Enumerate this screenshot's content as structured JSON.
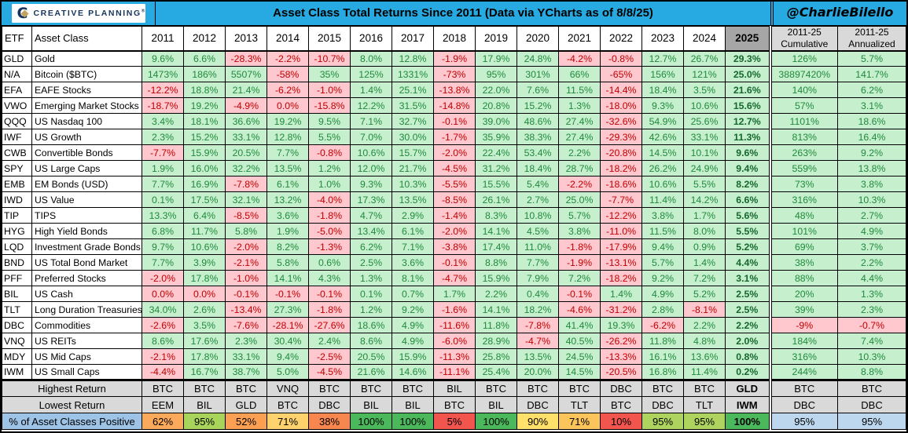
{
  "header": {
    "logo_text": "CREATIVE PLANNING",
    "logo_mark": "®",
    "logo_icon": "C",
    "title": "Asset Class Total Returns Since 2011 (Data via YCharts as of 8/8/25)",
    "handle": "@CharlieBilello",
    "accent_color": "#27AAE1"
  },
  "chart_data": {
    "type": "table",
    "title": "Asset Class Total Returns Since 2011 (Data via YCharts as of 8/8/25)",
    "columns": {
      "etf": "ETF",
      "asset_class": "Asset Class",
      "years": [
        "2011",
        "2012",
        "2013",
        "2014",
        "2015",
        "2016",
        "2017",
        "2018",
        "2019",
        "2020",
        "2021",
        "2022",
        "2023",
        "2024"
      ],
      "year_2025": "2025",
      "cumulative": [
        "2011-25",
        "Cumulative"
      ],
      "annualized": [
        "2011-25",
        "Annualized"
      ]
    },
    "rows": [
      {
        "etf": "GLD",
        "asset_class": "Gold",
        "returns": [
          "9.6%",
          "6.6%",
          "-28.3%",
          "-2.2%",
          "-10.7%",
          "8.0%",
          "12.8%",
          "-1.9%",
          "17.9%",
          "24.8%",
          "-4.2%",
          "-0.8%",
          "12.7%",
          "26.7%"
        ],
        "r2025": "29.3%",
        "cumulative": "126%",
        "annualized": "5.7%"
      },
      {
        "etf": "N/A",
        "asset_class": "Bitcoin ($BTC)",
        "returns": [
          "1473%",
          "186%",
          "5507%",
          "-58%",
          "35%",
          "125%",
          "1331%",
          "-73%",
          "95%",
          "301%",
          "66%",
          "-65%",
          "156%",
          "121%"
        ],
        "r2025": "25.0%",
        "cumulative": "38897420%",
        "annualized": "141.7%"
      },
      {
        "etf": "EFA",
        "asset_class": "EAFE Stocks",
        "returns": [
          "-12.2%",
          "18.8%",
          "21.4%",
          "-6.2%",
          "-1.0%",
          "1.4%",
          "25.1%",
          "-13.8%",
          "22.0%",
          "7.6%",
          "11.5%",
          "-14.4%",
          "18.4%",
          "3.5%"
        ],
        "r2025": "21.6%",
        "cumulative": "140%",
        "annualized": "6.2%"
      },
      {
        "etf": "VWO",
        "asset_class": "Emerging Market Stocks",
        "returns": [
          "-18.7%",
          "19.2%",
          "-4.9%",
          "0.0%",
          "-15.8%",
          "12.2%",
          "31.5%",
          "-14.8%",
          "20.8%",
          "15.2%",
          "1.3%",
          "-18.0%",
          "9.3%",
          "10.6%"
        ],
        "r2025": "15.6%",
        "cumulative": "57%",
        "annualized": "3.1%"
      },
      {
        "etf": "QQQ",
        "asset_class": "US Nasdaq 100",
        "returns": [
          "3.4%",
          "18.1%",
          "36.6%",
          "19.2%",
          "9.5%",
          "7.1%",
          "32.7%",
          "-0.1%",
          "39.0%",
          "48.6%",
          "27.4%",
          "-32.6%",
          "54.9%",
          "25.6%"
        ],
        "r2025": "12.7%",
        "cumulative": "1101%",
        "annualized": "18.6%"
      },
      {
        "etf": "IWF",
        "asset_class": "US Growth",
        "returns": [
          "2.3%",
          "15.2%",
          "33.1%",
          "12.8%",
          "5.5%",
          "7.0%",
          "30.0%",
          "-1.7%",
          "35.9%",
          "38.3%",
          "27.4%",
          "-29.3%",
          "42.6%",
          "33.1%"
        ],
        "r2025": "11.3%",
        "cumulative": "813%",
        "annualized": "16.4%"
      },
      {
        "etf": "CWB",
        "asset_class": "Convertible Bonds",
        "returns": [
          "-7.7%",
          "15.9%",
          "20.5%",
          "7.7%",
          "-0.8%",
          "10.6%",
          "15.7%",
          "-2.0%",
          "22.4%",
          "53.4%",
          "2.2%",
          "-20.8%",
          "14.5%",
          "10.1%"
        ],
        "r2025": "9.6%",
        "cumulative": "263%",
        "annualized": "9.2%"
      },
      {
        "etf": "SPY",
        "asset_class": "US Large Caps",
        "returns": [
          "1.9%",
          "16.0%",
          "32.2%",
          "13.5%",
          "1.2%",
          "12.0%",
          "21.7%",
          "-4.5%",
          "31.2%",
          "18.4%",
          "28.7%",
          "-18.2%",
          "26.2%",
          "24.9%"
        ],
        "r2025": "9.4%",
        "cumulative": "559%",
        "annualized": "13.8%"
      },
      {
        "etf": "EMB",
        "asset_class": "EM Bonds (USD)",
        "returns": [
          "7.7%",
          "16.9%",
          "-7.8%",
          "6.1%",
          "1.0%",
          "9.3%",
          "10.3%",
          "-5.5%",
          "15.5%",
          "5.4%",
          "-2.2%",
          "-18.6%",
          "10.6%",
          "5.5%"
        ],
        "r2025": "8.2%",
        "cumulative": "73%",
        "annualized": "3.8%"
      },
      {
        "etf": "IWD",
        "asset_class": "US Value",
        "returns": [
          "0.1%",
          "17.5%",
          "32.1%",
          "13.2%",
          "-4.0%",
          "17.3%",
          "13.5%",
          "-8.5%",
          "26.1%",
          "2.7%",
          "25.0%",
          "-7.7%",
          "11.4%",
          "14.2%"
        ],
        "r2025": "6.6%",
        "cumulative": "316%",
        "annualized": "10.3%"
      },
      {
        "etf": "TIP",
        "asset_class": "TIPS",
        "returns": [
          "13.3%",
          "6.4%",
          "-8.5%",
          "3.6%",
          "-1.8%",
          "4.7%",
          "2.9%",
          "-1.4%",
          "8.3%",
          "10.8%",
          "5.7%",
          "-12.2%",
          "3.8%",
          "1.7%"
        ],
        "r2025": "5.6%",
        "cumulative": "48%",
        "annualized": "2.7%"
      },
      {
        "etf": "HYG",
        "asset_class": "High Yield Bonds",
        "returns": [
          "6.8%",
          "11.7%",
          "5.8%",
          "1.9%",
          "-5.0%",
          "13.4%",
          "6.1%",
          "-2.0%",
          "14.1%",
          "4.5%",
          "3.8%",
          "-11.0%",
          "11.5%",
          "8.0%"
        ],
        "r2025": "5.5%",
        "cumulative": "101%",
        "annualized": "4.9%"
      },
      {
        "etf": "LQD",
        "asset_class": "Investment Grade Bonds",
        "returns": [
          "9.7%",
          "10.6%",
          "-2.0%",
          "8.2%",
          "-1.3%",
          "6.2%",
          "7.1%",
          "-3.8%",
          "17.4%",
          "11.0%",
          "-1.8%",
          "-17.9%",
          "9.4%",
          "0.9%"
        ],
        "r2025": "5.2%",
        "cumulative": "69%",
        "annualized": "3.7%"
      },
      {
        "etf": "BND",
        "asset_class": "US Total Bond Market",
        "returns": [
          "7.7%",
          "3.9%",
          "-2.1%",
          "5.8%",
          "0.6%",
          "2.5%",
          "3.6%",
          "-0.1%",
          "8.8%",
          "7.7%",
          "-1.9%",
          "-13.1%",
          "5.7%",
          "1.4%"
        ],
        "r2025": "4.4%",
        "cumulative": "38%",
        "annualized": "2.2%"
      },
      {
        "etf": "PFF",
        "asset_class": "Preferred Stocks",
        "returns": [
          "-2.0%",
          "17.8%",
          "-1.0%",
          "14.1%",
          "4.3%",
          "1.3%",
          "8.1%",
          "-4.7%",
          "15.9%",
          "7.9%",
          "7.2%",
          "-18.2%",
          "9.2%",
          "7.2%"
        ],
        "r2025": "3.1%",
        "cumulative": "88%",
        "annualized": "4.4%"
      },
      {
        "etf": "BIL",
        "asset_class": "US Cash",
        "returns": [
          "0.0%",
          "0.0%",
          "-0.1%",
          "-0.1%",
          "-0.1%",
          "0.1%",
          "0.7%",
          "1.7%",
          "2.2%",
          "0.4%",
          "-0.1%",
          "1.4%",
          "4.9%",
          "5.2%"
        ],
        "r2025": "2.5%",
        "cumulative": "20%",
        "annualized": "1.3%"
      },
      {
        "etf": "TLT",
        "asset_class": "Long Duration Treasuries",
        "returns": [
          "34.0%",
          "2.6%",
          "-13.4%",
          "27.3%",
          "-1.8%",
          "1.2%",
          "9.2%",
          "-1.6%",
          "14.1%",
          "18.2%",
          "-4.6%",
          "-31.2%",
          "2.8%",
          "-8.1%"
        ],
        "r2025": "2.5%",
        "cumulative": "39%",
        "annualized": "2.3%"
      },
      {
        "etf": "DBC",
        "asset_class": "Commodities",
        "returns": [
          "-2.6%",
          "3.5%",
          "-7.6%",
          "-28.1%",
          "-27.6%",
          "18.6%",
          "4.9%",
          "-11.6%",
          "11.8%",
          "-7.8%",
          "41.4%",
          "19.3%",
          "-6.2%",
          "2.2%"
        ],
        "r2025": "2.2%",
        "cumulative": "-9%",
        "annualized": "-0.7%"
      },
      {
        "etf": "VNQ",
        "asset_class": "US REITs",
        "returns": [
          "8.6%",
          "17.6%",
          "2.3%",
          "30.4%",
          "2.4%",
          "8.6%",
          "4.9%",
          "-6.0%",
          "28.9%",
          "-4.7%",
          "40.5%",
          "-26.2%",
          "11.8%",
          "4.8%"
        ],
        "r2025": "2.0%",
        "cumulative": "184%",
        "annualized": "7.4%"
      },
      {
        "etf": "MDY",
        "asset_class": "US Mid Caps",
        "returns": [
          "-2.1%",
          "17.8%",
          "33.1%",
          "9.4%",
          "-2.5%",
          "20.5%",
          "15.9%",
          "-11.3%",
          "25.8%",
          "13.5%",
          "24.5%",
          "-13.3%",
          "16.1%",
          "13.6%"
        ],
        "r2025": "0.8%",
        "cumulative": "316%",
        "annualized": "10.3%"
      },
      {
        "etf": "IWM",
        "asset_class": "US Small Caps",
        "returns": [
          "-4.4%",
          "16.7%",
          "38.7%",
          "5.0%",
          "-4.5%",
          "21.6%",
          "14.6%",
          "-11.1%",
          "25.4%",
          "20.0%",
          "14.5%",
          "-20.5%",
          "16.8%",
          "11.4%"
        ],
        "r2025": "0.2%",
        "cumulative": "244%",
        "annualized": "8.8%"
      }
    ],
    "footer": {
      "highest": {
        "label": "Highest Return",
        "values": [
          "BTC",
          "BTC",
          "BTC",
          "VNQ",
          "BTC",
          "BTC",
          "BTC",
          "BIL",
          "BTC",
          "BTC",
          "BTC",
          "DBC",
          "BTC",
          "BTC"
        ],
        "v2025": "GLD",
        "cumulative": "BTC",
        "annualized": "BTC"
      },
      "lowest": {
        "label": "Lowest Return",
        "values": [
          "EEM",
          "BIL",
          "GLD",
          "BTC",
          "DBC",
          "BIL",
          "BIL",
          "BTC",
          "BIL",
          "DBC",
          "TLT",
          "BTC",
          "DBC",
          "TLT"
        ],
        "v2025": "IWM",
        "cumulative": "DBC",
        "annualized": "DBC"
      },
      "pct_positive": {
        "label": "% of Asset Classes Positive",
        "values": [
          {
            "v": "62%",
            "c": "#FBAA5C"
          },
          {
            "v": "95%",
            "c": "#A9D45B"
          },
          {
            "v": "52%",
            "c": "#FBA052"
          },
          {
            "v": "71%",
            "c": "#FED36E"
          },
          {
            "v": "38%",
            "c": "#F8864F"
          },
          {
            "v": "100%",
            "c": "#4CB85C"
          },
          {
            "v": "100%",
            "c": "#4CB85C"
          },
          {
            "v": "5%",
            "c": "#F2544E"
          },
          {
            "v": "100%",
            "c": "#4CB85C"
          },
          {
            "v": "90%",
            "c": "#FFE06A"
          },
          {
            "v": "71%",
            "c": "#FBC55C"
          },
          {
            "v": "10%",
            "c": "#F2544E"
          },
          {
            "v": "95%",
            "c": "#AED45F"
          },
          {
            "v": "95%",
            "c": "#AED45F"
          }
        ],
        "v2025": {
          "v": "100%",
          "c": "#4CB85C"
        },
        "cumulative": {
          "v": "95%",
          "c": "#BDD7EE"
        },
        "annualized": {
          "v": "95%",
          "c": "#BDD7EE"
        }
      }
    },
    "colors": {
      "positive_bg": "#C6EFCE",
      "positive_text": "#1F8A3B",
      "negative_bg": "#FFC7CE",
      "negative_text": "#C00000",
      "header_gray": "#D9D9D9",
      "col_2025_gray": "#A6A6A6",
      "footer_label_blue": "#9DC3E6",
      "blue_cell": "#BDD7EE",
      "titlebar_blue": "#27AAE1"
    }
  }
}
